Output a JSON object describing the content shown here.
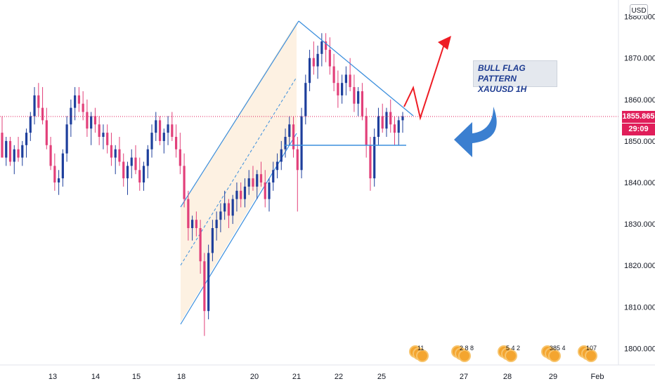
{
  "chart_data": {
    "type": "candlestick",
    "symbol_annotation": [
      "BULL FLAG PATTERN",
      "XAUUSD 1H"
    ],
    "currency": "USD",
    "y_axis": {
      "min": 1796,
      "max": 1884,
      "ticks": [
        "1800.000",
        "1810.000",
        "1820.000",
        "1830.000",
        "1840.000",
        "1850.000",
        "1860.000",
        "1870.000",
        "1880.000"
      ]
    },
    "x_axis": {
      "ticks": [
        "13",
        "14",
        "15",
        "18",
        "20",
        "21",
        "22",
        "25",
        "27",
        "28",
        "29",
        "Feb"
      ]
    },
    "current_price": "1855.865",
    "countdown": "29:09",
    "colors": {
      "up": "#1e3f9c",
      "down": "#e2407a",
      "trendline": "#3c8fdd",
      "projection": "#ee1c24",
      "arrow": "#3b7fd0",
      "channel_fill": "#fdf1e2",
      "price_line": "#e01e5a"
    },
    "events": [
      {
        "count": "11"
      },
      {
        "count": "2 8 8"
      },
      {
        "count": "5 4 2"
      },
      {
        "count": "385 4"
      },
      {
        "count": "107"
      }
    ],
    "ohlc": [
      [
        1852,
        1856,
        1846,
        1846
      ],
      [
        1846,
        1851,
        1844,
        1850
      ],
      [
        1850,
        1851,
        1844,
        1845
      ],
      [
        1845,
        1849,
        1842,
        1848
      ],
      [
        1848,
        1851,
        1845,
        1846
      ],
      [
        1846,
        1850,
        1844,
        1849
      ],
      [
        1849,
        1853,
        1846,
        1852
      ],
      [
        1852,
        1857,
        1850,
        1856
      ],
      [
        1856,
        1863,
        1854,
        1861
      ],
      [
        1861,
        1864,
        1856,
        1858
      ],
      [
        1858,
        1863,
        1854,
        1855
      ],
      [
        1855,
        1858,
        1848,
        1849
      ],
      [
        1849,
        1851,
        1843,
        1844
      ],
      [
        1844,
        1847,
        1838,
        1840
      ],
      [
        1840,
        1843,
        1837,
        1841
      ],
      [
        1841,
        1848,
        1839,
        1847
      ],
      [
        1847,
        1856,
        1845,
        1854
      ],
      [
        1854,
        1860,
        1851,
        1858
      ],
      [
        1858,
        1863,
        1855,
        1861
      ],
      [
        1861,
        1863,
        1857,
        1859
      ],
      [
        1859,
        1862,
        1855,
        1857
      ],
      [
        1857,
        1860,
        1851,
        1853
      ],
      [
        1853,
        1857,
        1849,
        1856
      ],
      [
        1856,
        1858,
        1852,
        1854
      ],
      [
        1854,
        1856,
        1849,
        1851
      ],
      [
        1851,
        1854,
        1848,
        1852
      ],
      [
        1852,
        1854,
        1847,
        1849
      ],
      [
        1849,
        1852,
        1844,
        1846
      ],
      [
        1846,
        1849,
        1842,
        1848
      ],
      [
        1848,
        1851,
        1844,
        1845
      ],
      [
        1845,
        1847,
        1839,
        1841
      ],
      [
        1841,
        1845,
        1837,
        1844
      ],
      [
        1844,
        1848,
        1841,
        1846
      ],
      [
        1846,
        1849,
        1842,
        1843
      ],
      [
        1843,
        1846,
        1838,
        1840
      ],
      [
        1840,
        1845,
        1838,
        1844
      ],
      [
        1844,
        1849,
        1841,
        1848
      ],
      [
        1848,
        1854,
        1846,
        1852
      ],
      [
        1852,
        1857,
        1850,
        1855
      ],
      [
        1855,
        1856,
        1849,
        1850
      ],
      [
        1850,
        1853,
        1847,
        1852
      ],
      [
        1852,
        1856,
        1849,
        1854
      ],
      [
        1854,
        1857,
        1850,
        1851
      ],
      [
        1851,
        1854,
        1846,
        1848
      ],
      [
        1848,
        1852,
        1842,
        1844
      ],
      [
        1844,
        1847,
        1834,
        1836
      ],
      [
        1836,
        1838,
        1826,
        1829
      ],
      [
        1829,
        1832,
        1826,
        1831
      ],
      [
        1831,
        1833,
        1827,
        1829
      ],
      [
        1829,
        1831,
        1818,
        1821
      ],
      [
        1821,
        1823,
        1803,
        1809
      ],
      [
        1809,
        1825,
        1807,
        1823
      ],
      [
        1823,
        1831,
        1821,
        1829
      ],
      [
        1829,
        1833,
        1826,
        1831
      ],
      [
        1831,
        1835,
        1828,
        1833
      ],
      [
        1833,
        1838,
        1831,
        1835
      ],
      [
        1835,
        1836,
        1829,
        1832
      ],
      [
        1832,
        1837,
        1830,
        1836
      ],
      [
        1836,
        1840,
        1833,
        1838
      ],
      [
        1838,
        1840,
        1834,
        1836
      ],
      [
        1836,
        1841,
        1834,
        1839
      ],
      [
        1839,
        1843,
        1837,
        1841
      ],
      [
        1841,
        1844,
        1838,
        1839
      ],
      [
        1839,
        1843,
        1836,
        1842
      ],
      [
        1842,
        1845,
        1839,
        1840
      ],
      [
        1840,
        1843,
        1834,
        1836
      ],
      [
        1836,
        1841,
        1833,
        1840
      ],
      [
        1840,
        1845,
        1838,
        1843
      ],
      [
        1843,
        1847,
        1841,
        1845
      ],
      [
        1845,
        1850,
        1843,
        1848
      ],
      [
        1848,
        1853,
        1846,
        1851
      ],
      [
        1851,
        1856,
        1849,
        1854
      ],
      [
        1854,
        1856,
        1846,
        1848
      ],
      [
        1848,
        1851,
        1833,
        1843
      ],
      [
        1843,
        1858,
        1841,
        1856
      ],
      [
        1856,
        1866,
        1854,
        1864
      ],
      [
        1864,
        1872,
        1862,
        1870
      ],
      [
        1870,
        1874,
        1866,
        1868
      ],
      [
        1868,
        1873,
        1865,
        1871
      ],
      [
        1871,
        1876,
        1868,
        1874
      ],
      [
        1874,
        1876,
        1869,
        1872
      ],
      [
        1872,
        1875,
        1866,
        1868
      ],
      [
        1868,
        1871,
        1862,
        1864
      ],
      [
        1864,
        1867,
        1858,
        1861
      ],
      [
        1861,
        1866,
        1859,
        1864
      ],
      [
        1864,
        1868,
        1861,
        1866
      ],
      [
        1866,
        1870,
        1862,
        1863
      ],
      [
        1863,
        1866,
        1857,
        1859
      ],
      [
        1859,
        1863,
        1856,
        1862
      ],
      [
        1862,
        1864,
        1855,
        1856
      ],
      [
        1856,
        1858,
        1846,
        1849
      ],
      [
        1849,
        1851,
        1838,
        1841
      ],
      [
        1841,
        1853,
        1839,
        1851
      ],
      [
        1851,
        1858,
        1849,
        1856
      ],
      [
        1856,
        1859,
        1852,
        1853
      ],
      [
        1853,
        1858,
        1851,
        1857
      ],
      [
        1857,
        1860,
        1852,
        1854
      ],
      [
        1854,
        1856,
        1849,
        1852
      ],
      [
        1852,
        1856,
        1849,
        1855
      ],
      [
        1855,
        1857,
        1852,
        1856
      ]
    ]
  }
}
